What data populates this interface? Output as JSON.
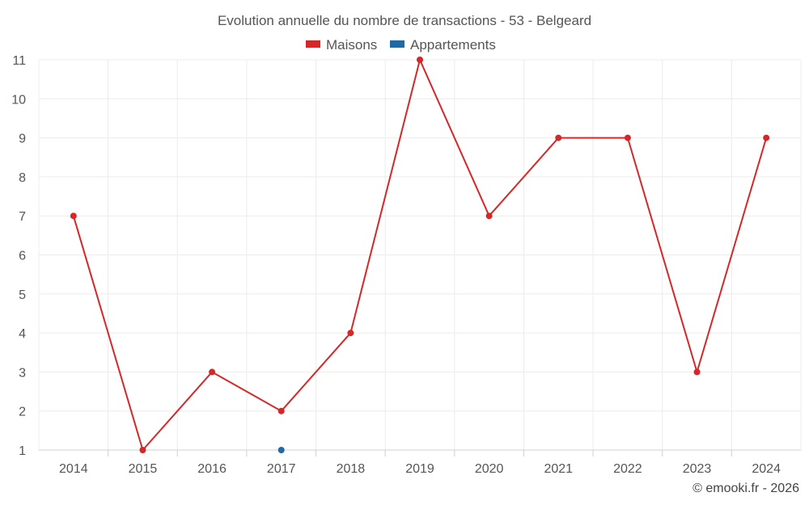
{
  "chart_data": {
    "type": "line",
    "title": "Evolution annuelle du nombre de transactions - 53 - Belgeard",
    "categories": [
      "2014",
      "2015",
      "2016",
      "2017",
      "2018",
      "2019",
      "2020",
      "2021",
      "2022",
      "2023",
      "2024"
    ],
    "series": [
      {
        "name": "Maisons",
        "color": "#d62728",
        "values": [
          7,
          1,
          3,
          2,
          4,
          11,
          7,
          9,
          9,
          3,
          9
        ]
      },
      {
        "name": "Appartements",
        "color": "#1f6aa5",
        "values": [
          null,
          null,
          null,
          1,
          null,
          null,
          null,
          null,
          null,
          null,
          null
        ]
      }
    ],
    "ylim": [
      1,
      11
    ],
    "yticks": [
      "1",
      "2",
      "3",
      "4",
      "5",
      "6",
      "7",
      "8",
      "9",
      "10",
      "11"
    ],
    "grid": true,
    "legend_position": "top-center"
  },
  "credit": "© emooki.fr - 2026"
}
